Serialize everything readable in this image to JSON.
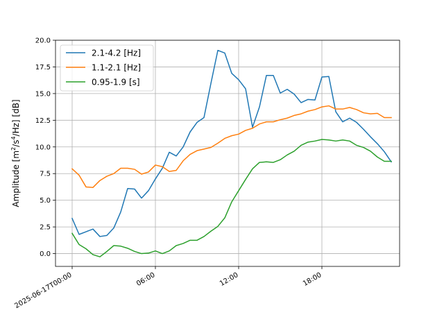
{
  "chart_data": {
    "type": "line",
    "ylabel": "Amplitude [m²/s⁴/Hz] [dB]",
    "xlabel": "",
    "title": "",
    "ylim": [
      -1.2,
      20
    ],
    "xlim_hours": [
      -1.2,
      23.6
    ],
    "grid": true,
    "legend_position": "top-left",
    "x_ticks": [
      {
        "hour": 0,
        "label": "2025-06-17T00:00"
      },
      {
        "hour": 6,
        "label": "06:00"
      },
      {
        "hour": 12,
        "label": "12:00"
      },
      {
        "hour": 18,
        "label": "18:00"
      }
    ],
    "y_ticks": [
      "0.0",
      "2.5",
      "5.0",
      "7.5",
      "10.0",
      "12.5",
      "15.0",
      "17.5",
      "20.0"
    ],
    "y_tick_values": [
      0,
      2.5,
      5,
      7.5,
      10,
      12.5,
      15,
      17.5,
      20
    ],
    "x": [
      0,
      0.5,
      1,
      1.5,
      2,
      2.5,
      3,
      3.5,
      4,
      4.5,
      5,
      5.5,
      6,
      6.5,
      7,
      7.5,
      8,
      8.5,
      9,
      9.5,
      10,
      10.5,
      11,
      11.5,
      12,
      12.5,
      13,
      13.5,
      14,
      14.5,
      15,
      15.5,
      16,
      16.5,
      17,
      17.5,
      18,
      18.5,
      19,
      19.5,
      20,
      20.5,
      21,
      21.5,
      22,
      22.5,
      23
    ],
    "series": [
      {
        "name": "2.1-4.2 [Hz]",
        "color": "#1f77b4",
        "values": [
          3.3,
          1.8,
          2.05,
          2.3,
          1.6,
          1.7,
          2.4,
          3.9,
          6.1,
          6.05,
          5.2,
          5.9,
          7.0,
          8.0,
          9.5,
          9.15,
          10.0,
          11.4,
          12.3,
          12.75,
          15.95,
          19.05,
          18.8,
          16.9,
          16.3,
          15.45,
          11.85,
          13.75,
          16.7,
          16.7,
          15.05,
          15.4,
          14.95,
          14.15,
          14.45,
          14.4,
          16.55,
          16.6,
          13.3,
          12.35,
          12.7,
          12.3,
          11.65,
          10.95,
          10.3,
          9.55,
          8.6
        ]
      },
      {
        "name": "1.1-2.1 [Hz]",
        "color": "#ff7f0e",
        "values": [
          7.95,
          7.35,
          6.25,
          6.2,
          6.85,
          7.25,
          7.5,
          8.0,
          8.0,
          7.9,
          7.45,
          7.65,
          8.3,
          8.15,
          7.7,
          7.8,
          8.7,
          9.3,
          9.65,
          9.8,
          9.95,
          10.35,
          10.8,
          11.05,
          11.2,
          11.55,
          11.75,
          12.15,
          12.35,
          12.35,
          12.55,
          12.7,
          12.95,
          13.1,
          13.35,
          13.5,
          13.75,
          13.85,
          13.55,
          13.55,
          13.7,
          13.5,
          13.2,
          13.1,
          13.15,
          12.75,
          12.75
        ]
      },
      {
        "name": "0.95-1.9 [s]",
        "color": "#2ca02c",
        "values": [
          1.9,
          0.85,
          0.45,
          -0.1,
          -0.3,
          0.2,
          0.75,
          0.7,
          0.5,
          0.2,
          0.0,
          0.05,
          0.25,
          0.0,
          0.25,
          0.75,
          0.95,
          1.25,
          1.25,
          1.6,
          2.1,
          2.55,
          3.35,
          4.85,
          5.9,
          6.95,
          7.95,
          8.55,
          8.6,
          8.55,
          8.8,
          9.25,
          9.6,
          10.15,
          10.45,
          10.55,
          10.7,
          10.65,
          10.55,
          10.65,
          10.55,
          10.15,
          9.95,
          9.6,
          9.05,
          8.65,
          8.65
        ]
      }
    ]
  }
}
